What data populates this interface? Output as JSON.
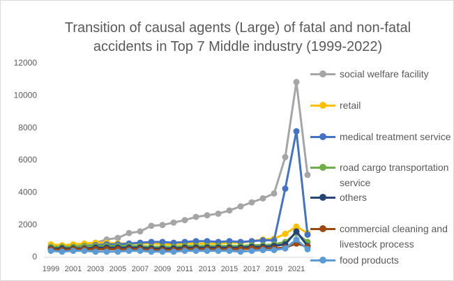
{
  "chart_data": {
    "type": "line",
    "title": "Transition of causal agents (Large) of fatal and non-fatal accidents in Top 7 Middle industry (1999-2022)",
    "categories": [
      "1999",
      null,
      "2001",
      null,
      "2003",
      null,
      "2005",
      null,
      "2007",
      null,
      "2009",
      null,
      "2011",
      null,
      "2013",
      null,
      "2015",
      null,
      "2017",
      null,
      "2019",
      null,
      "2021",
      null
    ],
    "series": [
      {
        "name": "social welfare facility",
        "color": "#a5a5a5",
        "values": [
          650,
          600,
          700,
          800,
          900,
          1100,
          1200,
          1500,
          1600,
          1950,
          2000,
          2150,
          2300,
          2500,
          2600,
          2700,
          2900,
          3150,
          3400,
          3650,
          3950,
          6200,
          10850,
          5100
        ]
      },
      {
        "name": "retail",
        "color": "#ffc000",
        "values": [
          800,
          750,
          800,
          850,
          900,
          900,
          850,
          850,
          850,
          850,
          800,
          800,
          850,
          850,
          850,
          850,
          900,
          900,
          1000,
          1100,
          1150,
          1450,
          1900,
          1500
        ]
      },
      {
        "name": "medical treatment service",
        "color": "#4472c4",
        "values": [
          600,
          600,
          650,
          700,
          750,
          800,
          800,
          850,
          900,
          950,
          950,
          900,
          950,
          1000,
          1000,
          950,
          1000,
          950,
          1000,
          1050,
          1050,
          4250,
          7800,
          1400
        ]
      },
      {
        "name": "road cargo transportation service",
        "color": "#70ad47",
        "values": [
          650,
          650,
          650,
          700,
          700,
          700,
          700,
          700,
          700,
          650,
          650,
          650,
          700,
          700,
          700,
          700,
          700,
          700,
          750,
          750,
          800,
          950,
          1500,
          950
        ]
      },
      {
        "name": "others",
        "color": "#264478",
        "values": [
          550,
          550,
          550,
          550,
          600,
          600,
          600,
          600,
          600,
          550,
          550,
          550,
          600,
          600,
          600,
          600,
          600,
          600,
          650,
          650,
          700,
          800,
          1600,
          700
        ]
      },
      {
        "name": "commercial cleaning and livestock process",
        "color": "#9e480e",
        "values": [
          500,
          450,
          500,
          500,
          500,
          500,
          500,
          500,
          500,
          450,
          450,
          450,
          500,
          500,
          500,
          500,
          500,
          500,
          550,
          550,
          550,
          600,
          850,
          650
        ]
      },
      {
        "name": "food products",
        "color": "#5b9bd5",
        "values": [
          400,
          350,
          400,
          400,
          350,
          350,
          350,
          400,
          400,
          350,
          350,
          350,
          400,
          400,
          400,
          400,
          400,
          350,
          400,
          450,
          450,
          550,
          1100,
          500
        ]
      }
    ],
    "ylim": [
      0,
      12000
    ],
    "yticks": [
      0,
      2000,
      4000,
      6000,
      8000,
      10000,
      12000
    ],
    "grid": false,
    "legend": "right"
  }
}
